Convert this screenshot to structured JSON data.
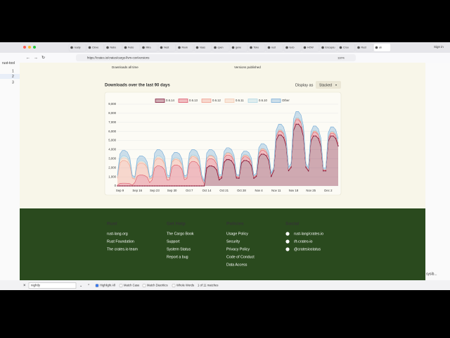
{
  "browser": {
    "tabs": [
      "ready",
      "Clove",
      "Nabo",
      "Fedo",
      "Mira",
      "Nest",
      "Rook",
      "Vaas",
      "open",
      "gene",
      "Toko",
      "rust",
      "tedo",
      "HOW",
      "Encapsu",
      "Crou",
      "Rust",
      "ab"
    ],
    "url": "https://crates.io/crates/cargo-llvm-cov/versions",
    "zoom": "110%",
    "profile": "Sign in"
  },
  "terminal": {
    "title": "rust-tool",
    "lines": [
      "1",
      "2",
      "3"
    ],
    "side_text": "sysib..."
  },
  "page": {
    "stats": [
      "Downloads all time",
      "Versions published"
    ],
    "section_title": "Downloads over the last 90 days",
    "display_label": "Display as",
    "display_value": "Stacked"
  },
  "chart_data": {
    "type": "stacked-area",
    "categories": [
      null,
      "Sep 9",
      null,
      null,
      null,
      null,
      null,
      null,
      "Sep 16",
      null,
      null,
      null,
      null,
      null,
      null,
      "Sep 23",
      null,
      null,
      null,
      null,
      null,
      null,
      "Sep 30",
      null,
      null,
      null,
      null,
      null,
      null,
      "Oct 7",
      null,
      null,
      null,
      null,
      null,
      null,
      "Oct 14",
      null,
      null,
      null,
      null,
      null,
      null,
      "Oct 21",
      null,
      null,
      null,
      null,
      null,
      null,
      "Oct 28",
      null,
      null,
      null,
      null,
      null,
      null,
      "Nov 4",
      null,
      null,
      null,
      null,
      null,
      null,
      "Nov 11",
      null,
      null,
      null,
      null,
      null,
      null,
      "Nov 18",
      null,
      null,
      null,
      null,
      null,
      null,
      "Nov 25",
      null,
      null,
      null,
      null,
      null,
      null,
      "Dec 2",
      null,
      null,
      null,
      null
    ],
    "series": [
      {
        "name": "0.6.14",
        "color": "#7a1233",
        "values": [
          0,
          0,
          0,
          0,
          0,
          0,
          0,
          0,
          0,
          0,
          0,
          0,
          0,
          0,
          0,
          0,
          0,
          0,
          0,
          0,
          0,
          0,
          0,
          0,
          0,
          0,
          0,
          0,
          0,
          0,
          0,
          0,
          0,
          0,
          0,
          0,
          1980,
          2200,
          2200,
          2090,
          1760,
          660,
          870,
          2610,
          2900,
          2900,
          2760,
          2320,
          870,
          840,
          2520,
          2800,
          2800,
          2660,
          2240,
          840,
          1050,
          3150,
          3500,
          3500,
          3330,
          2800,
          1050,
          1680,
          5040,
          5600,
          5600,
          5320,
          4480,
          1680,
          2040,
          6120,
          6800,
          6800,
          6460,
          5440,
          2040,
          1650,
          4950,
          5500,
          5500,
          5230,
          4400,
          1650,
          1650,
          4950,
          5500,
          5500,
          5230,
          4400
        ]
      },
      {
        "name": "0.6.13",
        "color": "#d9485f",
        "values": [
          90,
          270,
          300,
          300,
          290,
          240,
          90,
          360,
          1080,
          1200,
          1200,
          1140,
          960,
          360,
          660,
          1980,
          2200,
          2200,
          2090,
          1760,
          660,
          690,
          2070,
          2300,
          2300,
          2190,
          1840,
          690,
          810,
          2430,
          2700,
          2700,
          2570,
          2160,
          810,
          240,
          720,
          800,
          800,
          760,
          640,
          240,
          150,
          450,
          500,
          500,
          480,
          400,
          150,
          120,
          360,
          400,
          400,
          380,
          320,
          120,
          120,
          360,
          400,
          400,
          380,
          320,
          120,
          120,
          360,
          400,
          400,
          380,
          320,
          120,
          150,
          450,
          500,
          500,
          480,
          400,
          150,
          120,
          360,
          400,
          400,
          380,
          320,
          120,
          90,
          270,
          300,
          300,
          290,
          240
        ]
      },
      {
        "name": "0.6.12",
        "color": "#ee9585",
        "values": [
          750,
          2250,
          2500,
          2500,
          2380,
          2000,
          750,
          390,
          1170,
          1300,
          1300,
          1240,
          1040,
          390,
          240,
          720,
          800,
          800,
          760,
          640,
          240,
          180,
          540,
          600,
          600,
          570,
          480,
          180,
          150,
          450,
          500,
          500,
          480,
          400,
          150,
          90,
          270,
          300,
          300,
          290,
          240,
          90,
          60,
          180,
          200,
          200,
          190,
          160,
          60,
          50,
          140,
          150,
          150,
          140,
          120,
          50,
          50,
          140,
          150,
          150,
          140,
          120,
          50,
          30,
          90,
          100,
          100,
          100,
          80,
          30,
          30,
          90,
          100,
          100,
          100,
          80,
          30,
          30,
          90,
          100,
          100,
          100,
          80,
          30,
          30,
          90,
          100,
          100,
          100,
          80
        ]
      },
      {
        "name": "0.6.11",
        "color": "#f3c3aa",
        "values": [
          90,
          270,
          300,
          300,
          290,
          240,
          90,
          50,
          140,
          150,
          150,
          140,
          120,
          50,
          50,
          140,
          150,
          150,
          140,
          120,
          50,
          30,
          90,
          100,
          100,
          100,
          80,
          30,
          30,
          90,
          100,
          100,
          100,
          80,
          30,
          20,
          50,
          50,
          50,
          50,
          40,
          20,
          20,
          50,
          50,
          50,
          50,
          40,
          20,
          20,
          50,
          50,
          50,
          50,
          40,
          20,
          20,
          50,
          50,
          50,
          50,
          40,
          20,
          20,
          50,
          50,
          50,
          50,
          40,
          20,
          20,
          50,
          50,
          50,
          50,
          40,
          20,
          20,
          50,
          50,
          50,
          50,
          40,
          20,
          20,
          50,
          50,
          50,
          50,
          40
        ]
      },
      {
        "name": "0.6.10",
        "color": "#a9d3e3",
        "values": [
          60,
          180,
          200,
          200,
          190,
          160,
          60,
          50,
          140,
          150,
          150,
          140,
          120,
          50,
          50,
          140,
          150,
          150,
          140,
          120,
          50,
          30,
          90,
          100,
          100,
          100,
          80,
          30,
          30,
          90,
          100,
          100,
          100,
          80,
          30,
          20,
          50,
          50,
          50,
          50,
          40,
          20,
          20,
          50,
          50,
          50,
          50,
          40,
          20,
          20,
          50,
          50,
          50,
          50,
          40,
          20,
          20,
          50,
          50,
          50,
          50,
          40,
          20,
          20,
          50,
          50,
          50,
          50,
          40,
          20,
          20,
          50,
          50,
          50,
          50,
          40,
          20,
          20,
          50,
          50,
          50,
          50,
          40,
          20,
          20,
          50,
          50,
          50,
          50,
          40
        ]
      },
      {
        "name": "Other",
        "color": "#6fa8d6",
        "values": [
          180,
          540,
          600,
          600,
          570,
          480,
          180,
          150,
          450,
          500,
          500,
          480,
          400,
          150,
          210,
          630,
          700,
          700,
          670,
          560,
          210,
          180,
          540,
          600,
          600,
          570,
          480,
          180,
          180,
          540,
          600,
          600,
          570,
          480,
          180,
          180,
          540,
          600,
          600,
          570,
          480,
          180,
          150,
          450,
          500,
          500,
          480,
          400,
          150,
          120,
          360,
          400,
          400,
          380,
          320,
          120,
          150,
          450,
          500,
          500,
          480,
          400,
          150,
          180,
          540,
          600,
          600,
          570,
          480,
          180,
          210,
          630,
          700,
          700,
          670,
          560,
          210,
          150,
          450,
          500,
          500,
          480,
          400,
          150,
          150,
          450,
          500,
          500,
          480,
          400
        ]
      }
    ],
    "ylim": [
      0,
      9000
    ],
    "yticks": [
      0,
      {
        "value": 1000,
        "label": "1,000"
      },
      {
        "value": 2000,
        "label": "2,000"
      },
      {
        "value": 3000,
        "label": "3,000"
      },
      {
        "value": 4000,
        "label": "4,000"
      },
      {
        "value": 5000,
        "label": "5,000"
      },
      {
        "value": 6000,
        "label": "6,000"
      },
      {
        "value": 7000,
        "label": "7,000"
      },
      {
        "value": 8000,
        "label": "8,000"
      },
      {
        "value": 9000,
        "label": "9,000"
      }
    ],
    "grid": true
  },
  "footer": {
    "columns": [
      {
        "title": "Rust",
        "links": [
          "rust-lang.org",
          "Rust Foundation",
          "The crates.io team"
        ]
      },
      {
        "title": "Get Help",
        "links": [
          "The Cargo Book",
          "Support",
          "System Status",
          "Report a bug"
        ]
      },
      {
        "title": "Policies",
        "links": [
          "Usage Policy",
          "Security",
          "Privacy Policy",
          "Code of Conduct",
          "Data Access"
        ]
      },
      {
        "title": "Social",
        "links": [
          "rust-lang/crates.io",
          "#t-crates-io",
          "@cratesiostatus"
        ]
      }
    ]
  },
  "find_bar": {
    "query": "nightly",
    "options": [
      "Highlight All",
      "Match Case",
      "Match Diacritics",
      "Whole Words"
    ],
    "status": "1 of 11 matches"
  }
}
